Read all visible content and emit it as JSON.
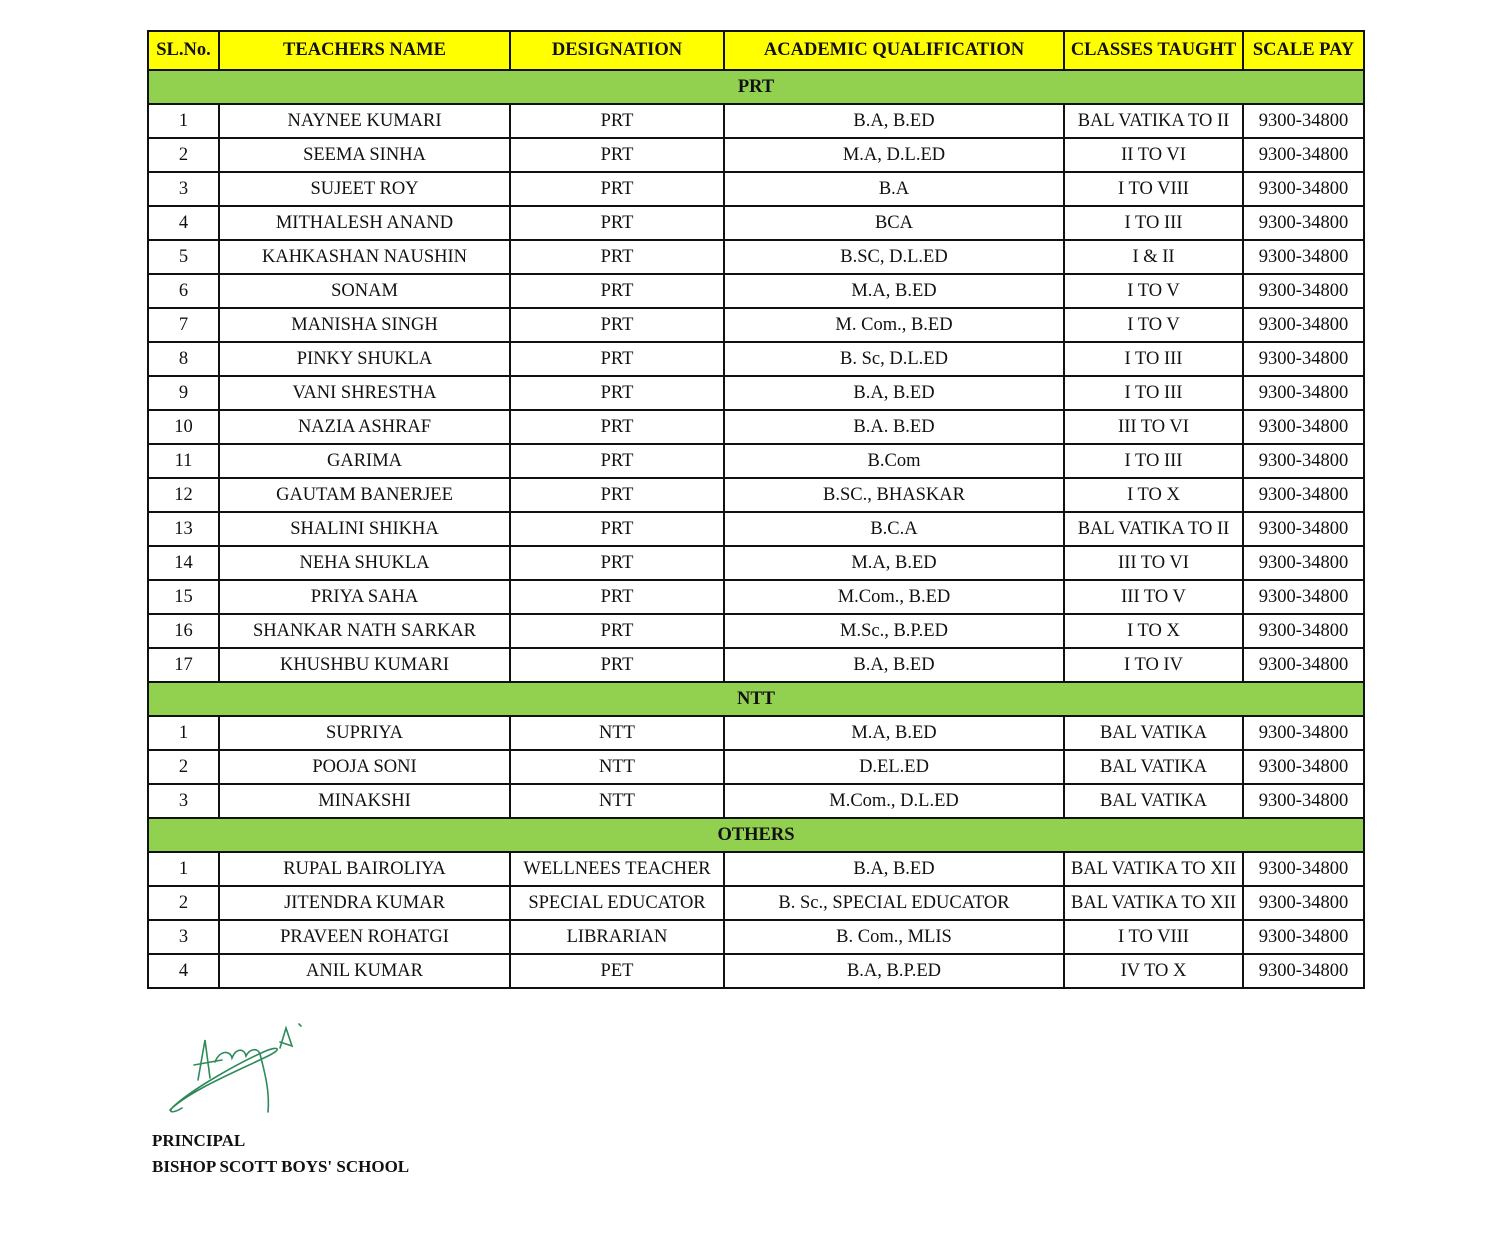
{
  "columns": [
    "SL.No.",
    "TEACHERS NAME",
    "DESIGNATION",
    "ACADEMIC QUALIFICATION",
    "CLASSES TAUGHT",
    "SCALE PAY"
  ],
  "colors": {
    "header_bg": "#ffff00",
    "section_bg": "#92d050",
    "signature_ink": "#2e8a5a"
  },
  "sections": [
    {
      "title": "PRT",
      "rows": [
        [
          "1",
          "NAYNEE KUMARI",
          "PRT",
          "B.A, B.ED",
          "BAL VATIKA TO II",
          "9300-34800"
        ],
        [
          "2",
          "SEEMA SINHA",
          "PRT",
          "M.A, D.L.ED",
          "II TO VI",
          "9300-34800"
        ],
        [
          "3",
          "SUJEET ROY",
          "PRT",
          "B.A",
          "I TO VIII",
          "9300-34800"
        ],
        [
          "4",
          "MITHALESH ANAND",
          "PRT",
          "BCA",
          "I TO III",
          "9300-34800"
        ],
        [
          "5",
          "KAHKASHAN NAUSHIN",
          "PRT",
          "B.SC, D.L.ED",
          "I & II",
          "9300-34800"
        ],
        [
          "6",
          "SONAM",
          "PRT",
          "M.A, B.ED",
          "I TO V",
          "9300-34800"
        ],
        [
          "7",
          "MANISHA SINGH",
          "PRT",
          "M. Com., B.ED",
          "I TO V",
          "9300-34800"
        ],
        [
          "8",
          "PINKY SHUKLA",
          "PRT",
          "B. Sc, D.L.ED",
          "I TO III",
          "9300-34800"
        ],
        [
          "9",
          "VANI SHRESTHA",
          "PRT",
          "B.A, B.ED",
          "I TO III",
          "9300-34800"
        ],
        [
          "10",
          "NAZIA ASHRAF",
          "PRT",
          "B.A. B.ED",
          "III TO VI",
          "9300-34800"
        ],
        [
          "11",
          "GARIMA",
          "PRT",
          "B.Com",
          "I TO III",
          "9300-34800"
        ],
        [
          "12",
          "GAUTAM BANERJEE",
          "PRT",
          "B.SC., BHASKAR",
          "I TO X",
          "9300-34800"
        ],
        [
          "13",
          "SHALINI SHIKHA",
          "PRT",
          "B.C.A",
          "BAL VATIKA TO II",
          "9300-34800"
        ],
        [
          "14",
          "NEHA SHUKLA",
          "PRT",
          "M.A, B.ED",
          "III TO VI",
          "9300-34800"
        ],
        [
          "15",
          "PRIYA SAHA",
          "PRT",
          "M.Com., B.ED",
          "III TO V",
          "9300-34800"
        ],
        [
          "16",
          "SHANKAR NATH SARKAR",
          "PRT",
          "M.Sc., B.P.ED",
          "I TO X",
          "9300-34800"
        ],
        [
          "17",
          "KHUSHBU KUMARI",
          "PRT",
          "B.A, B.ED",
          "I TO IV",
          "9300-34800"
        ]
      ]
    },
    {
      "title": "NTT",
      "rows": [
        [
          "1",
          "SUPRIYA",
          "NTT",
          "M.A, B.ED",
          "BAL VATIKA",
          "9300-34800"
        ],
        [
          "2",
          "POOJA SONI",
          "NTT",
          "D.EL.ED",
          "BAL VATIKA",
          "9300-34800"
        ],
        [
          "3",
          "MINAKSHI",
          "NTT",
          "M.Com., D.L.ED",
          "BAL VATIKA",
          "9300-34800"
        ]
      ]
    },
    {
      "title": "OTHERS",
      "rows": [
        [
          "1",
          "RUPAL BAIROLIYA",
          "WELLNEES TEACHER",
          "B.A, B.ED",
          "BAL VATIKA TO XII",
          "9300-34800"
        ],
        [
          "2",
          "JITENDRA KUMAR",
          "SPECIAL EDUCATOR",
          "B. Sc., SPECIAL EDUCATOR",
          "BAL VATIKA TO XII",
          "9300-34800"
        ],
        [
          "3",
          "PRAVEEN ROHATGI",
          "LIBRARIAN",
          "B. Com., MLIS",
          "I TO VIII",
          "9300-34800"
        ],
        [
          "4",
          "ANIL KUMAR",
          "PET",
          "B.A, B.P.ED",
          "IV TO X",
          "9300-34800"
        ]
      ]
    }
  ],
  "footer": {
    "designation": "PRINCIPAL",
    "school": "BISHOP SCOTT BOYS' SCHOOL"
  }
}
